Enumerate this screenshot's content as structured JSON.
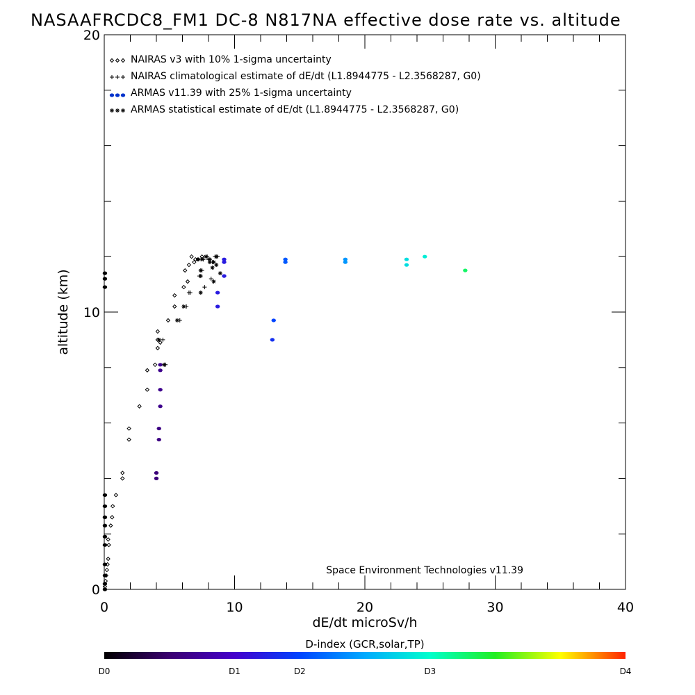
{
  "chart_data": {
    "type": "scatter",
    "title": "NASAAFRCDC8_FM1 DC-8   N817NA effective dose rate vs. altitude",
    "xlabel": "dE/dt microSv/h",
    "ylabel": "altitude (km)",
    "xlim": [
      0,
      40
    ],
    "ylim": [
      0,
      20
    ],
    "x_ticks": [
      {
        "value": 0,
        "label": "0"
      },
      {
        "value": 10,
        "label": "10"
      },
      {
        "value": 20,
        "label": "20"
      },
      {
        "value": 30,
        "label": "30"
      },
      {
        "value": 40,
        "label": "40"
      }
    ],
    "y_ticks": [
      {
        "value": 0,
        "label": "0"
      },
      {
        "value": 10,
        "label": "10"
      },
      {
        "value": 20,
        "label": "20"
      }
    ],
    "legend_position": "top-left",
    "series": [
      {
        "name": "NAIRAS v3 with 10% 1-sigma uncertainty",
        "marker": "diamond",
        "color": "#000000",
        "points": [
          [
            0.05,
            0.1
          ],
          [
            0.1,
            0.3
          ],
          [
            0.15,
            0.5
          ],
          [
            0.2,
            0.7
          ],
          [
            0.25,
            0.9
          ],
          [
            0.3,
            1.1
          ],
          [
            0.35,
            1.6
          ],
          [
            0.3,
            1.8
          ],
          [
            0.5,
            2.3
          ],
          [
            0.6,
            2.6
          ],
          [
            0.65,
            3.0
          ],
          [
            0.9,
            3.4
          ],
          [
            1.4,
            4.0
          ],
          [
            1.4,
            4.2
          ],
          [
            1.9,
            5.4
          ],
          [
            1.9,
            5.8
          ],
          [
            2.7,
            6.6
          ],
          [
            3.3,
            7.2
          ],
          [
            3.3,
            7.9
          ],
          [
            3.9,
            8.1
          ],
          [
            4.1,
            8.7
          ],
          [
            4.3,
            8.9
          ],
          [
            4.1,
            9.0
          ],
          [
            4.1,
            9.3
          ],
          [
            4.9,
            9.7
          ],
          [
            5.4,
            10.2
          ],
          [
            5.4,
            10.6
          ],
          [
            6.1,
            10.9
          ],
          [
            6.4,
            11.1
          ],
          [
            6.2,
            11.5
          ],
          [
            6.5,
            11.7
          ],
          [
            6.9,
            11.8
          ],
          [
            7.2,
            11.9
          ],
          [
            7.5,
            12.0
          ],
          [
            7.0,
            11.9
          ],
          [
            6.7,
            12.0
          ]
        ]
      },
      {
        "name": "NAIRAS climatological estimate of dE/dt (L1.8944775 - L2.3568287, G0)",
        "marker": "plus",
        "color": "#000000",
        "points": [
          [
            4.7,
            8.1
          ],
          [
            4.5,
            9.0
          ],
          [
            5.8,
            9.7
          ],
          [
            6.3,
            10.2
          ],
          [
            6.5,
            10.7
          ],
          [
            6.6,
            10.7
          ],
          [
            7.7,
            10.9
          ],
          [
            7.3,
            11.3
          ],
          [
            8.2,
            11.2
          ],
          [
            7.5,
            11.5
          ],
          [
            7.6,
            11.9
          ],
          [
            8.0,
            11.9
          ],
          [
            8.3,
            11.8
          ],
          [
            7.9,
            12.0
          ],
          [
            8.7,
            12.0
          ],
          [
            8.5,
            12.0
          ]
        ]
      },
      {
        "name": "ARMAS v11.39 with 25% 1-sigma uncertainty",
        "marker": "dot",
        "color": "#0033cc",
        "points": [
          {
            "x": 0.05,
            "y": 0.0,
            "d": 0.0
          },
          {
            "x": 0.05,
            "y": 0.2,
            "d": 0.0
          },
          {
            "x": 0.05,
            "y": 0.5,
            "d": 0.0
          },
          {
            "x": 0.05,
            "y": 0.9,
            "d": 0.0
          },
          {
            "x": 0.05,
            "y": 1.6,
            "d": 0.0
          },
          {
            "x": 0.05,
            "y": 1.9,
            "d": 0.0
          },
          {
            "x": 0.05,
            "y": 2.3,
            "d": 0.0
          },
          {
            "x": 0.05,
            "y": 2.6,
            "d": 0.0
          },
          {
            "x": 0.05,
            "y": 3.0,
            "d": 0.0
          },
          {
            "x": 0.05,
            "y": 3.4,
            "d": 0.0
          },
          {
            "x": 0.05,
            "y": 10.9,
            "d": 0.0
          },
          {
            "x": 0.05,
            "y": 11.2,
            "d": 0.0
          },
          {
            "x": 0.05,
            "y": 11.4,
            "d": 0.0
          },
          {
            "x": 4.0,
            "y": 4.0,
            "d": 0.55
          },
          {
            "x": 4.0,
            "y": 4.2,
            "d": 0.55
          },
          {
            "x": 4.2,
            "y": 5.4,
            "d": 0.6
          },
          {
            "x": 4.2,
            "y": 5.8,
            "d": 0.6
          },
          {
            "x": 4.3,
            "y": 6.6,
            "d": 0.65
          },
          {
            "x": 4.3,
            "y": 7.2,
            "d": 0.65
          },
          {
            "x": 4.3,
            "y": 7.9,
            "d": 0.65
          },
          {
            "x": 4.3,
            "y": 8.1,
            "d": 0.65
          },
          {
            "x": 8.7,
            "y": 10.2,
            "d": 1.2
          },
          {
            "x": 8.7,
            "y": 10.7,
            "d": 1.2
          },
          {
            "x": 9.2,
            "y": 11.3,
            "d": 1.2
          },
          {
            "x": 9.2,
            "y": 11.8,
            "d": 1.2
          },
          {
            "x": 9.2,
            "y": 11.9,
            "d": 1.2
          },
          {
            "x": 12.9,
            "y": 9.0,
            "d": 1.35
          },
          {
            "x": 13.0,
            "y": 9.7,
            "d": 1.5
          },
          {
            "x": 13.9,
            "y": 11.8,
            "d": 1.6
          },
          {
            "x": 13.9,
            "y": 11.9,
            "d": 1.6
          },
          {
            "x": 18.5,
            "y": 11.8,
            "d": 1.9
          },
          {
            "x": 18.5,
            "y": 11.9,
            "d": 1.9
          },
          {
            "x": 23.2,
            "y": 11.7,
            "d": 2.3
          },
          {
            "x": 23.2,
            "y": 11.9,
            "d": 2.3
          },
          {
            "x": 24.6,
            "y": 12.0,
            "d": 2.4
          },
          {
            "x": 27.7,
            "y": 11.5,
            "d": 2.8
          }
        ]
      },
      {
        "name": "ARMAS statistical estimate of dE/dt (L1.8944775 - L2.3568287, G0)",
        "marker": "asterisk",
        "color": "#000000",
        "points": [
          [
            4.6,
            8.1
          ],
          [
            4.2,
            9.0
          ],
          [
            5.6,
            9.7
          ],
          [
            6.1,
            10.2
          ],
          [
            7.4,
            10.7
          ],
          [
            7.4,
            11.3
          ],
          [
            7.4,
            11.5
          ],
          [
            8.4,
            11.1
          ],
          [
            8.3,
            11.6
          ],
          [
            8.9,
            11.4
          ],
          [
            8.4,
            11.8
          ],
          [
            7.2,
            11.9
          ],
          [
            7.5,
            11.9
          ],
          [
            7.8,
            12.0
          ],
          [
            8.1,
            11.9
          ],
          [
            8.6,
            12.0
          ],
          [
            8.6,
            11.7
          ],
          [
            8.1,
            11.8
          ]
        ]
      }
    ],
    "annotation": "Space Environment Technologies v11.39",
    "colorbar": {
      "title": "D-index (GCR,solar,TP)",
      "range": [
        0,
        4
      ],
      "labels": [
        {
          "value": 0,
          "label": "D0"
        },
        {
          "value": 1,
          "label": "D1"
        },
        {
          "value": 1.5,
          "label": "D2"
        },
        {
          "value": 2.5,
          "label": "D3"
        },
        {
          "value": 4,
          "label": "D4"
        }
      ]
    }
  }
}
